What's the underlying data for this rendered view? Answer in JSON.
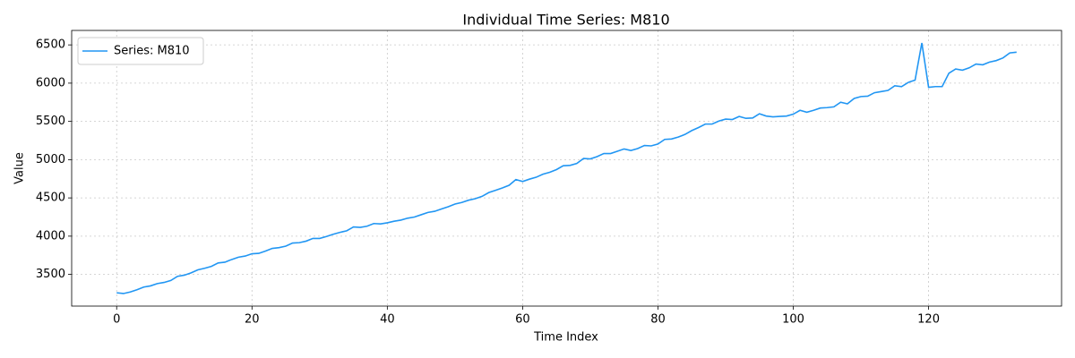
{
  "chart_data": {
    "type": "line",
    "title": "Individual Time Series: M810",
    "x_label": "Time Index",
    "y_label": "Value",
    "x": [
      0,
      1,
      2,
      3,
      4,
      5,
      6,
      7,
      8,
      9,
      10,
      11,
      12,
      13,
      14,
      15,
      16,
      17,
      18,
      19,
      20,
      21,
      22,
      23,
      24,
      25,
      26,
      27,
      28,
      29,
      30,
      31,
      32,
      33,
      34,
      35,
      36,
      37,
      38,
      39,
      40,
      41,
      42,
      43,
      44,
      45,
      46,
      47,
      48,
      49,
      50,
      51,
      52,
      53,
      54,
      55,
      56,
      57,
      58,
      59,
      60,
      61,
      62,
      63,
      64,
      65,
      66,
      67,
      68,
      69,
      70,
      71,
      72,
      73,
      74,
      75,
      76,
      77,
      78,
      79,
      80,
      81,
      82,
      83,
      84,
      85,
      86,
      87,
      88,
      89,
      90,
      91,
      92,
      93,
      94,
      95,
      96,
      97,
      98,
      99,
      100,
      101,
      102,
      103,
      104,
      105,
      106,
      107,
      108,
      109,
      110,
      111,
      112,
      113,
      114,
      115,
      116,
      117,
      118,
      119,
      120,
      121,
      122,
      123,
      124,
      125,
      126,
      127,
      128,
      129,
      130,
      131,
      132,
      133
    ],
    "series": [
      {
        "name": "Series: M810",
        "color": "#2196f3",
        "values": [
          3260,
          3250,
          3270,
          3300,
          3335,
          3350,
          3380,
          3395,
          3420,
          3475,
          3490,
          3520,
          3560,
          3580,
          3605,
          3650,
          3660,
          3695,
          3725,
          3740,
          3770,
          3775,
          3805,
          3840,
          3850,
          3870,
          3910,
          3915,
          3935,
          3970,
          3970,
          3995,
          4025,
          4050,
          4070,
          4120,
          4115,
          4130,
          4165,
          4160,
          4175,
          4195,
          4210,
          4235,
          4250,
          4280,
          4310,
          4325,
          4355,
          4385,
          4420,
          4440,
          4470,
          4490,
          4520,
          4570,
          4600,
          4630,
          4665,
          4740,
          4715,
          4745,
          4770,
          4810,
          4835,
          4870,
          4920,
          4925,
          4950,
          5015,
          5010,
          5040,
          5080,
          5080,
          5110,
          5140,
          5120,
          5145,
          5185,
          5180,
          5205,
          5265,
          5270,
          5295,
          5330,
          5380,
          5420,
          5465,
          5465,
          5505,
          5530,
          5525,
          5565,
          5540,
          5545,
          5600,
          5570,
          5560,
          5565,
          5570,
          5595,
          5645,
          5620,
          5645,
          5675,
          5680,
          5690,
          5750,
          5730,
          5800,
          5825,
          5830,
          5875,
          5890,
          5905,
          5965,
          5955,
          6010,
          6040,
          6525,
          5945,
          5955,
          5955,
          6130,
          6185,
          6170,
          6200,
          6250,
          6240,
          6275,
          6295,
          6330,
          6395,
          6405
        ]
      }
    ],
    "xlim": [
      -6.65,
      139.65
    ],
    "xticks": [
      0,
      20,
      40,
      60,
      80,
      100,
      120
    ],
    "ylim": [
      3086,
      6689
    ],
    "yticks": [
      3500,
      4000,
      4500,
      5000,
      5500,
      6000,
      6500
    ],
    "grid": true,
    "legend": "upper-left"
  }
}
